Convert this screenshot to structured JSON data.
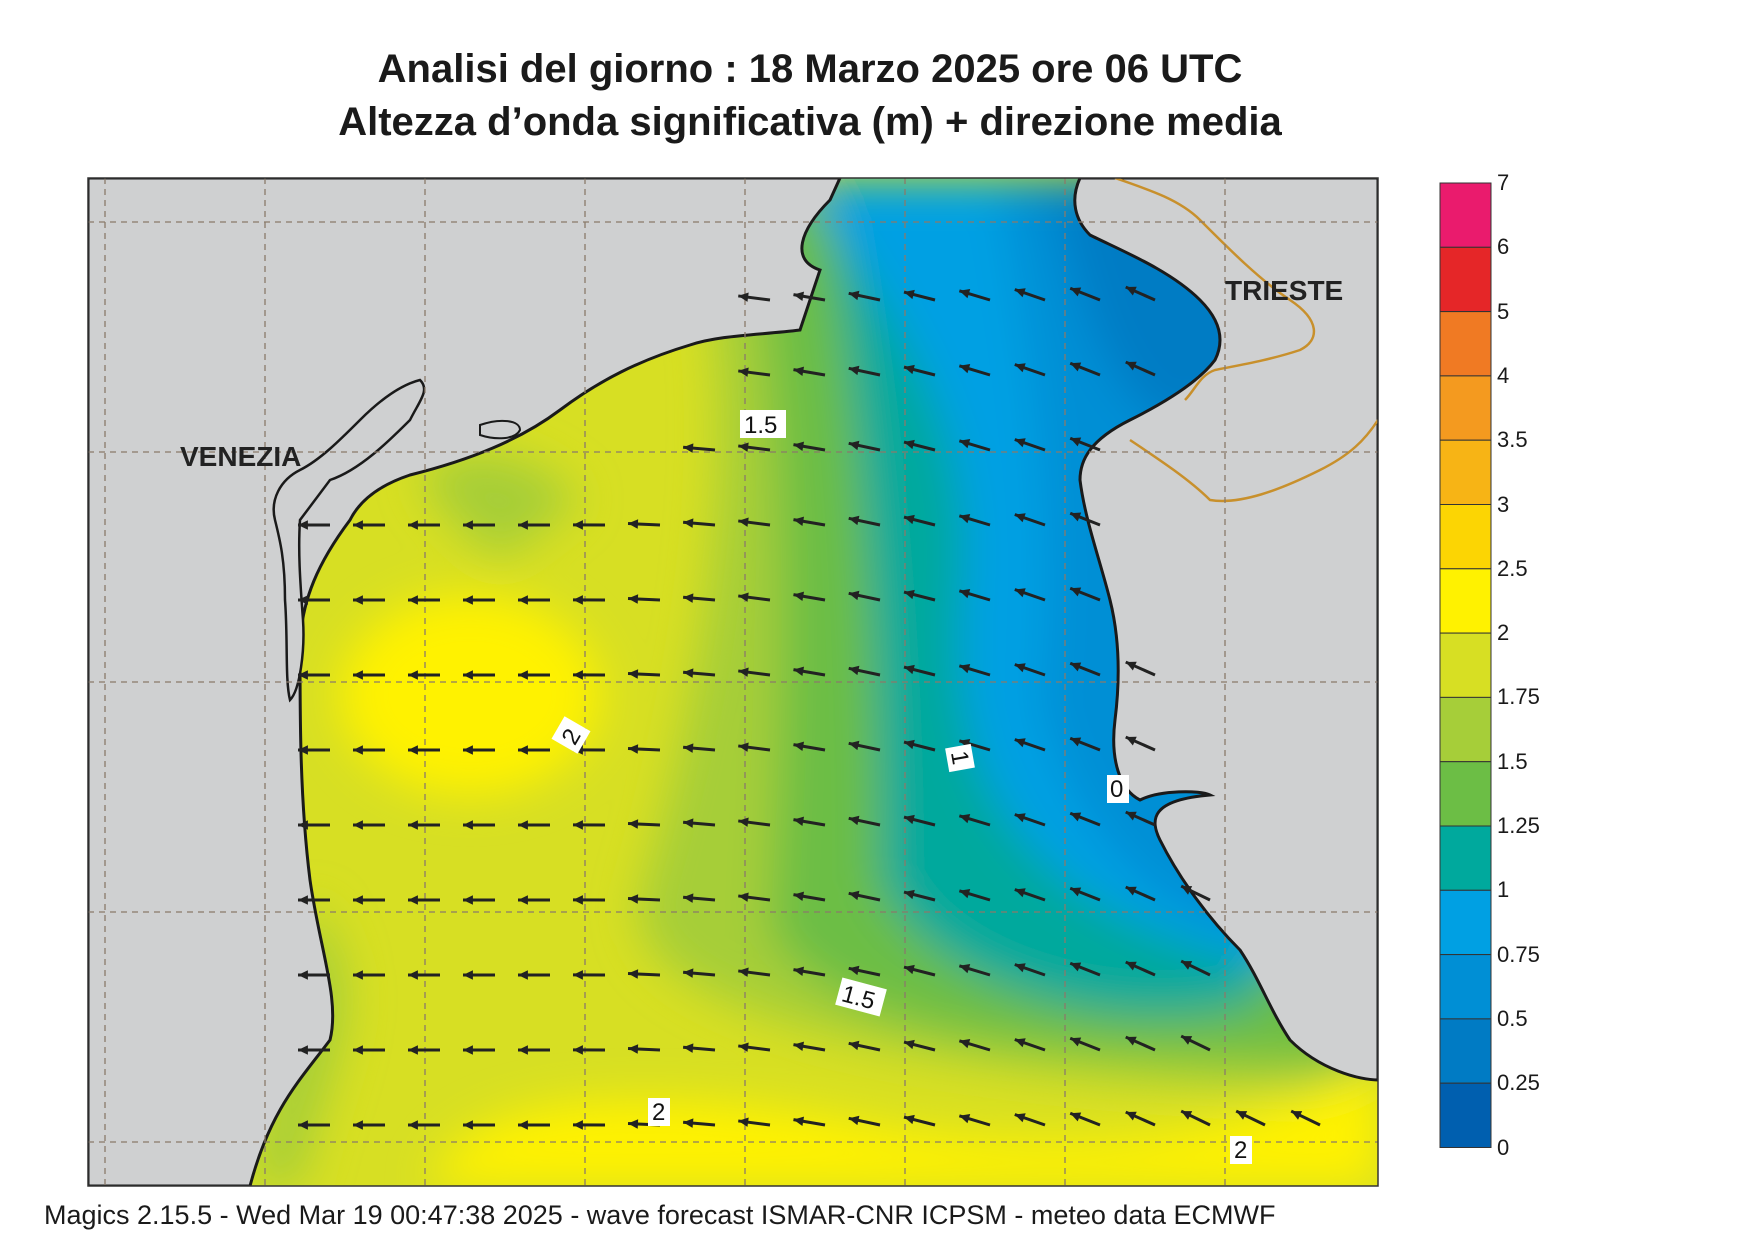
{
  "header": {
    "title_line1": "Analisi del giorno :  18   Marzo   2025   ore 06 UTC",
    "title_line2": "Altezza d’onda significativa (m) + direzione media"
  },
  "map": {
    "city_labels": [
      "VENEZIA",
      "TRIESTE"
    ],
    "contour_labels": [
      "1.5",
      "2",
      "1",
      "0",
      "1.5",
      "2",
      "2"
    ],
    "land_color": "#cfd0d1",
    "coast_color": "#1a1a1a",
    "border_color": "#c8902c",
    "arrow_color": "#222222"
  },
  "colorbar": {
    "ticks": [
      "7",
      "6",
      "5",
      "4",
      "3.5",
      "3",
      "2.5",
      "2",
      "1.75",
      "1.5",
      "1.25",
      "1",
      "0.75",
      "0.5",
      "0.25",
      "0"
    ],
    "colors": [
      "#ea1b6d",
      "#e52628",
      "#f07a23",
      "#f49a1f",
      "#f7b415",
      "#fcd503",
      "#fff200",
      "#d7df23",
      "#a6ce39",
      "#6cbe45",
      "#00a99d",
      "#00a0e3",
      "#008fd5",
      "#007bc4",
      "#005faf"
    ]
  },
  "footer": {
    "text": "Magics 2.15.5 - Wed Mar 19 00:47:38 2025 - wave forecast  ISMAR-CNR  ICPSM - meteo data   ECMWF"
  }
}
